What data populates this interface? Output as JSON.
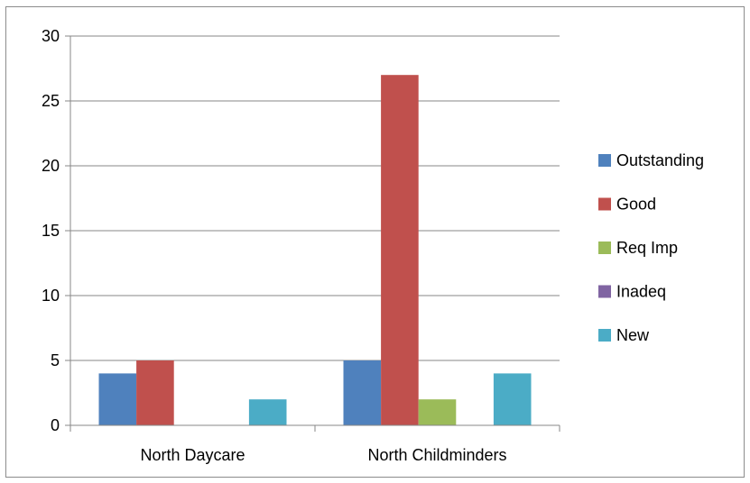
{
  "chart_data": {
    "type": "bar",
    "title": "",
    "xlabel": "",
    "ylabel": "",
    "categories": [
      "North Daycare",
      "North Childminders"
    ],
    "series": [
      {
        "name": "Outstanding",
        "color": "#4f81bd",
        "values": [
          4,
          5
        ]
      },
      {
        "name": "Good",
        "color": "#c0504d",
        "values": [
          5,
          27
        ]
      },
      {
        "name": "Req Imp",
        "color": "#9bbb59",
        "values": [
          0,
          2
        ]
      },
      {
        "name": "Inadeq",
        "color": "#8064a2",
        "values": [
          0,
          0
        ]
      },
      {
        "name": "New",
        "color": "#4bacc6",
        "values": [
          2,
          4
        ]
      }
    ],
    "ylim": [
      0,
      30
    ],
    "yticks": [
      0,
      5,
      10,
      15,
      20,
      25,
      30
    ],
    "grid": true,
    "legend_position": "right"
  }
}
